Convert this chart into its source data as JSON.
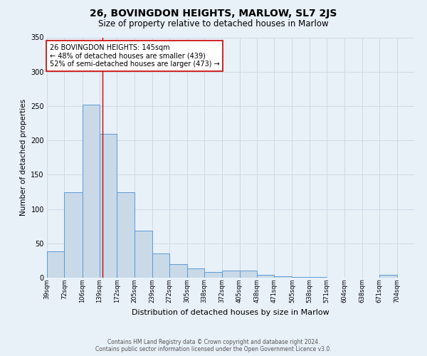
{
  "title": "26, BOVINGDON HEIGHTS, MARLOW, SL7 2JS",
  "subtitle": "Size of property relative to detached houses in Marlow",
  "xlabel": "Distribution of detached houses by size in Marlow",
  "ylabel": "Number of detached properties",
  "bar_left_edges": [
    39,
    72,
    106,
    139,
    172,
    205,
    239,
    272,
    305,
    338,
    372,
    405,
    438,
    471,
    505,
    538,
    571,
    604,
    638,
    671
  ],
  "bar_widths": [
    33,
    34,
    33,
    33,
    33,
    34,
    33,
    33,
    33,
    34,
    33,
    33,
    33,
    34,
    33,
    33,
    33,
    34,
    33,
    33
  ],
  "bar_heights": [
    38,
    124,
    252,
    210,
    124,
    68,
    35,
    20,
    14,
    8,
    10,
    10,
    4,
    2,
    1,
    1,
    0,
    0,
    0,
    4
  ],
  "tick_labels": [
    "39sqm",
    "72sqm",
    "106sqm",
    "139sqm",
    "172sqm",
    "205sqm",
    "239sqm",
    "272sqm",
    "305sqm",
    "338sqm",
    "372sqm",
    "405sqm",
    "438sqm",
    "471sqm",
    "505sqm",
    "538sqm",
    "571sqm",
    "604sqm",
    "638sqm",
    "671sqm",
    "704sqm"
  ],
  "tick_positions": [
    39,
    72,
    106,
    139,
    172,
    205,
    239,
    272,
    305,
    338,
    372,
    405,
    438,
    471,
    505,
    538,
    571,
    604,
    638,
    671,
    704
  ],
  "bar_fill_color": "#c9d9e8",
  "bar_edge_color": "#5b9bd5",
  "grid_color": "#d0d8e4",
  "background_color": "#e8f0f8",
  "vline_x": 145,
  "vline_color": "#cc0000",
  "annotation_text": "26 BOVINGDON HEIGHTS: 145sqm\n← 48% of detached houses are smaller (439)\n52% of semi-detached houses are larger (473) →",
  "annotation_box_color": "#ffffff",
  "annotation_box_edge_color": "#cc0000",
  "ylim": [
    0,
    350
  ],
  "xlim": [
    39,
    737
  ],
  "yticks": [
    0,
    50,
    100,
    150,
    200,
    250,
    300,
    350
  ],
  "footer_line1": "Contains HM Land Registry data © Crown copyright and database right 2024.",
  "footer_line2": "Contains public sector information licensed under the Open Government Licence v3.0.",
  "title_fontsize": 10,
  "subtitle_fontsize": 8.5,
  "xlabel_fontsize": 8,
  "ylabel_fontsize": 7.5,
  "tick_fontsize": 6,
  "annotation_fontsize": 7,
  "footer_fontsize": 5.5
}
